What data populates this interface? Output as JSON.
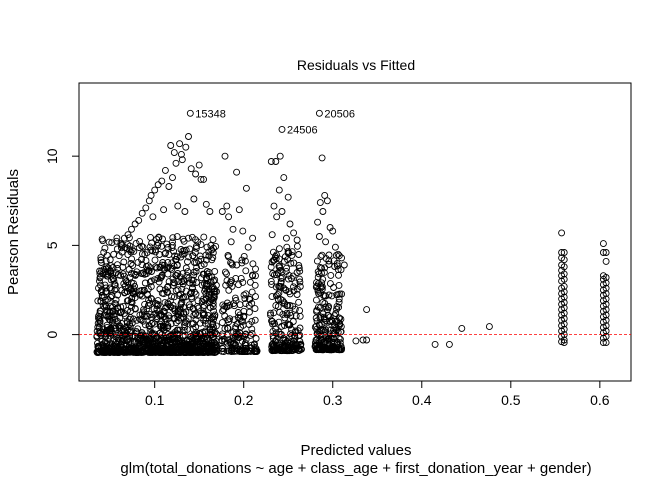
{
  "chart_data": {
    "type": "scatter",
    "title": "Residuals vs Fitted",
    "xlabel": "Predicted values",
    "ylabel": "Pearson Residuals",
    "subtitle": "glm(total_donations ~ age + class_age + first_donation_year + gender)",
    "xlim": [
      0.015,
      0.635
    ],
    "ylim": [
      -2.6,
      14.1
    ],
    "x_ticks": [
      0.1,
      0.2,
      0.3,
      0.4,
      0.5,
      0.6
    ],
    "x_tick_labels": [
      "0.1",
      "0.2",
      "0.3",
      "0.4",
      "0.5",
      "0.6"
    ],
    "y_ticks": [
      0,
      5,
      10
    ],
    "y_tick_labels": [
      "0",
      "5",
      "10"
    ],
    "grid": false,
    "reference_line": {
      "y": 0,
      "color": "#ff0000",
      "style": "dashed"
    },
    "point_color": "#000000",
    "labeled_points": [
      {
        "label": "15348",
        "x": 0.14,
        "y": 12.4
      },
      {
        "label": "20506",
        "x": 0.285,
        "y": 12.4
      },
      {
        "label": "24506",
        "x": 0.243,
        "y": 11.5
      }
    ],
    "clusters": [
      {
        "x_range": [
          0.035,
          0.17
        ],
        "y_min": -1.0,
        "y_max": 5.5,
        "count": 1300
      },
      {
        "x_range": [
          0.175,
          0.215
        ],
        "y_min": -0.95,
        "y_max": 4.5,
        "count": 180
      },
      {
        "x_range": [
          0.23,
          0.265
        ],
        "y_min": -0.9,
        "y_max": 5.0,
        "count": 230
      },
      {
        "x_range": [
          0.28,
          0.31
        ],
        "y_min": -0.85,
        "y_max": 4.5,
        "count": 230
      }
    ],
    "points": [
      {
        "x": 0.118,
        "y": 10.6
      },
      {
        "x": 0.122,
        "y": 10.2
      },
      {
        "x": 0.128,
        "y": 10.7
      },
      {
        "x": 0.13,
        "y": 10.1
      },
      {
        "x": 0.131,
        "y": 9.8
      },
      {
        "x": 0.135,
        "y": 10.5
      },
      {
        "x": 0.138,
        "y": 11.1
      },
      {
        "x": 0.124,
        "y": 9.6
      },
      {
        "x": 0.141,
        "y": 9.3
      },
      {
        "x": 0.146,
        "y": 9.0
      },
      {
        "x": 0.15,
        "y": 9.5
      },
      {
        "x": 0.152,
        "y": 8.7
      },
      {
        "x": 0.155,
        "y": 8.7
      },
      {
        "x": 0.112,
        "y": 9.2
      },
      {
        "x": 0.108,
        "y": 8.6
      },
      {
        "x": 0.104,
        "y": 8.4
      },
      {
        "x": 0.1,
        "y": 8.1
      },
      {
        "x": 0.096,
        "y": 7.8
      },
      {
        "x": 0.094,
        "y": 7.5
      },
      {
        "x": 0.12,
        "y": 8.8
      },
      {
        "x": 0.116,
        "y": 8.3
      },
      {
        "x": 0.144,
        "y": 7.6
      },
      {
        "x": 0.158,
        "y": 7.3
      },
      {
        "x": 0.162,
        "y": 6.9
      },
      {
        "x": 0.09,
        "y": 7.1
      },
      {
        "x": 0.086,
        "y": 6.8
      },
      {
        "x": 0.082,
        "y": 6.4
      },
      {
        "x": 0.078,
        "y": 6.2
      },
      {
        "x": 0.11,
        "y": 7.0
      },
      {
        "x": 0.126,
        "y": 7.2
      },
      {
        "x": 0.134,
        "y": 6.9
      },
      {
        "x": 0.098,
        "y": 6.6
      },
      {
        "x": 0.074,
        "y": 5.9
      },
      {
        "x": 0.07,
        "y": 5.6
      },
      {
        "x": 0.066,
        "y": 5.4
      },
      {
        "x": 0.062,
        "y": 5.1
      },
      {
        "x": 0.058,
        "y": 4.8
      },
      {
        "x": 0.054,
        "y": 4.5
      },
      {
        "x": 0.05,
        "y": 4.2
      },
      {
        "x": 0.046,
        "y": 3.8
      },
      {
        "x": 0.042,
        "y": 3.4
      },
      {
        "x": 0.038,
        "y": 3.0
      },
      {
        "x": 0.179,
        "y": 10.0
      },
      {
        "x": 0.192,
        "y": 9.1
      },
      {
        "x": 0.203,
        "y": 8.2
      },
      {
        "x": 0.181,
        "y": 7.2
      },
      {
        "x": 0.195,
        "y": 7.0
      },
      {
        "x": 0.176,
        "y": 6.9
      },
      {
        "x": 0.183,
        "y": 6.6
      },
      {
        "x": 0.188,
        "y": 5.9
      },
      {
        "x": 0.199,
        "y": 5.8
      },
      {
        "x": 0.21,
        "y": 5.4
      },
      {
        "x": 0.186,
        "y": 5.2
      },
      {
        "x": 0.205,
        "y": 4.9
      },
      {
        "x": 0.241,
        "y": 10.0
      },
      {
        "x": 0.236,
        "y": 9.7
      },
      {
        "x": 0.231,
        "y": 9.7
      },
      {
        "x": 0.245,
        "y": 8.8
      },
      {
        "x": 0.24,
        "y": 8.1
      },
      {
        "x": 0.25,
        "y": 7.7
      },
      {
        "x": 0.234,
        "y": 7.2
      },
      {
        "x": 0.243,
        "y": 6.9
      },
      {
        "x": 0.237,
        "y": 6.6
      },
      {
        "x": 0.252,
        "y": 6.2
      },
      {
        "x": 0.256,
        "y": 5.7
      },
      {
        "x": 0.232,
        "y": 5.6
      },
      {
        "x": 0.26,
        "y": 5.3
      },
      {
        "x": 0.248,
        "y": 5.4
      },
      {
        "x": 0.288,
        "y": 9.9
      },
      {
        "x": 0.291,
        "y": 7.8
      },
      {
        "x": 0.286,
        "y": 7.4
      },
      {
        "x": 0.294,
        "y": 7.5
      },
      {
        "x": 0.283,
        "y": 6.3
      },
      {
        "x": 0.289,
        "y": 6.9
      },
      {
        "x": 0.297,
        "y": 6.0
      },
      {
        "x": 0.3,
        "y": 5.8
      },
      {
        "x": 0.285,
        "y": 5.5
      },
      {
        "x": 0.292,
        "y": 5.2
      },
      {
        "x": 0.303,
        "y": 4.9
      },
      {
        "x": 0.306,
        "y": 4.5
      },
      {
        "x": 0.313,
        "y": 3.9
      },
      {
        "x": 0.31,
        "y": 4.3
      },
      {
        "x": 0.338,
        "y": 1.4
      },
      {
        "x": 0.326,
        "y": -0.35
      },
      {
        "x": 0.334,
        "y": -0.3
      },
      {
        "x": 0.338,
        "y": -0.3
      },
      {
        "x": 0.415,
        "y": -0.55
      },
      {
        "x": 0.431,
        "y": -0.55
      },
      {
        "x": 0.445,
        "y": 0.35
      },
      {
        "x": 0.476,
        "y": 0.45
      }
    ],
    "column_series": [
      {
        "x": 0.557,
        "y_values": [
          5.7,
          4.6,
          4.3,
          3.9,
          3.6,
          3.3,
          3.0,
          2.6,
          2.3,
          2.0,
          1.7,
          1.4,
          1.1,
          0.8,
          0.5,
          0.2,
          -0.1,
          -0.4
        ]
      },
      {
        "x": 0.56,
        "y_values": [
          4.6,
          4.2,
          3.8,
          3.4,
          3.1,
          2.7,
          2.4,
          2.1,
          1.8,
          1.5,
          1.2,
          0.9,
          0.6,
          0.3,
          0.0,
          -0.3,
          -0.45
        ]
      },
      {
        "x": 0.604,
        "y_values": [
          5.1,
          4.6,
          3.3,
          3.1,
          2.8,
          2.5,
          2.2,
          1.9,
          1.6,
          1.3,
          1.0,
          0.7,
          0.4,
          0.1,
          -0.2,
          -0.45
        ]
      },
      {
        "x": 0.607,
        "y_values": [
          4.6,
          4.1,
          3.2,
          2.9,
          2.6,
          2.3,
          2.0,
          1.7,
          1.4,
          1.1,
          0.8,
          0.5,
          0.2,
          -0.1,
          -0.45
        ]
      }
    ]
  }
}
